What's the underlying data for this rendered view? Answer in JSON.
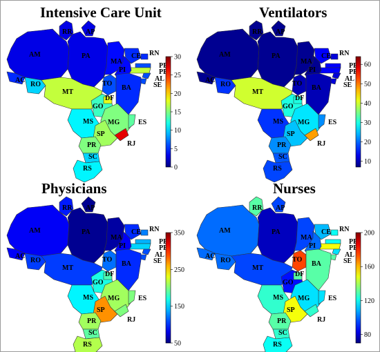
{
  "figure": {
    "panels": [
      {
        "key": "icu",
        "title": "Intensive Care Unit"
      },
      {
        "key": "vent",
        "title": "Ventilators"
      },
      {
        "key": "phys",
        "title": "Physicians"
      },
      {
        "key": "nurse",
        "title": "Nurses"
      }
    ]
  },
  "chart_data": [
    {
      "type": "choropleth",
      "title": "Intensive Care Unit",
      "colorbar": {
        "min": 0,
        "max": 30,
        "ticks": [
          0,
          5,
          10,
          15,
          20,
          25,
          30
        ],
        "colormap": "jet"
      },
      "regions": [
        {
          "state": "RR",
          "value": 3
        },
        {
          "state": "AP",
          "value": 3
        },
        {
          "state": "AM",
          "value": 3
        },
        {
          "state": "PA",
          "value": 3
        },
        {
          "state": "MA",
          "value": 4
        },
        {
          "state": "CE",
          "value": 5
        },
        {
          "state": "RN",
          "value": 5
        },
        {
          "state": "PB",
          "value": 6
        },
        {
          "state": "PE",
          "value": 17
        },
        {
          "state": "AL",
          "value": 6
        },
        {
          "state": "SE",
          "value": 6
        },
        {
          "state": "PI",
          "value": 4
        },
        {
          "state": "AC",
          "value": 5
        },
        {
          "state": "RO",
          "value": 10
        },
        {
          "state": "TO",
          "value": 6
        },
        {
          "state": "BA",
          "value": 5
        },
        {
          "state": "MT",
          "value": 17
        },
        {
          "state": "GO",
          "value": 13
        },
        {
          "state": "DF",
          "value": 18
        },
        {
          "state": "MG",
          "value": 15
        },
        {
          "state": "ES",
          "value": 14
        },
        {
          "state": "MS",
          "value": 11
        },
        {
          "state": "SP",
          "value": 16
        },
        {
          "state": "RJ",
          "value": 27
        },
        {
          "state": "PR",
          "value": 15
        },
        {
          "state": "SC",
          "value": 10
        },
        {
          "state": "RS",
          "value": 11
        }
      ]
    },
    {
      "type": "choropleth",
      "title": "Ventilators",
      "colorbar": {
        "min": 7,
        "max": 64,
        "ticks": [
          10,
          20,
          30,
          40,
          50,
          60
        ],
        "colormap": "jet"
      },
      "regions": [
        {
          "state": "RR",
          "value": 8
        },
        {
          "state": "AP",
          "value": 8
        },
        {
          "state": "AM",
          "value": 8
        },
        {
          "state": "PA",
          "value": 8
        },
        {
          "state": "MA",
          "value": 8
        },
        {
          "state": "CE",
          "value": 14
        },
        {
          "state": "RN",
          "value": 12
        },
        {
          "state": "PB",
          "value": 14
        },
        {
          "state": "PE",
          "value": 14
        },
        {
          "state": "AL",
          "value": 12
        },
        {
          "state": "SE",
          "value": 12
        },
        {
          "state": "PI",
          "value": 8
        },
        {
          "state": "AC",
          "value": 8
        },
        {
          "state": "RO",
          "value": 17
        },
        {
          "state": "TO",
          "value": 10
        },
        {
          "state": "BA",
          "value": 10
        },
        {
          "state": "MT",
          "value": 40
        },
        {
          "state": "GO",
          "value": 30
        },
        {
          "state": "DF",
          "value": 30
        },
        {
          "state": "MG",
          "value": 27
        },
        {
          "state": "ES",
          "value": 22
        },
        {
          "state": "MS",
          "value": 17
        },
        {
          "state": "SP",
          "value": 25
        },
        {
          "state": "RJ",
          "value": 48
        },
        {
          "state": "PR",
          "value": 22
        },
        {
          "state": "SC",
          "value": 19
        },
        {
          "state": "RS",
          "value": 18
        }
      ]
    },
    {
      "type": "choropleth",
      "title": "Physicians",
      "colorbar": {
        "min": 50,
        "max": 350,
        "ticks": [
          50,
          150,
          250,
          350
        ],
        "colormap": "jet"
      },
      "regions": [
        {
          "state": "RR",
          "value": 95
        },
        {
          "state": "AP",
          "value": 55
        },
        {
          "state": "AM",
          "value": 85
        },
        {
          "state": "PA",
          "value": 55
        },
        {
          "state": "MA",
          "value": 60
        },
        {
          "state": "CE",
          "value": 100
        },
        {
          "state": "RN",
          "value": 125
        },
        {
          "state": "PB",
          "value": 140
        },
        {
          "state": "PE",
          "value": 150
        },
        {
          "state": "AL",
          "value": 110
        },
        {
          "state": "SE",
          "value": 110
        },
        {
          "state": "PI",
          "value": 85
        },
        {
          "state": "AC",
          "value": 85
        },
        {
          "state": "RO",
          "value": 105
        },
        {
          "state": "TO",
          "value": 120
        },
        {
          "state": "BA",
          "value": 100
        },
        {
          "state": "MT",
          "value": 105
        },
        {
          "state": "GO",
          "value": 170
        },
        {
          "state": "DF",
          "value": 185
        },
        {
          "state": "MG",
          "value": 210
        },
        {
          "state": "ES",
          "value": 200
        },
        {
          "state": "MS",
          "value": 160
        },
        {
          "state": "SP",
          "value": 270
        },
        {
          "state": "RJ",
          "value": 200
        },
        {
          "state": "PR",
          "value": 210
        },
        {
          "state": "SC",
          "value": 190
        },
        {
          "state": "RS",
          "value": 215
        }
      ]
    },
    {
      "type": "choropleth",
      "title": "Nurses",
      "colorbar": {
        "min": 70,
        "max": 200,
        "ticks": [
          80,
          120,
          160,
          200
        ],
        "colormap": "jet"
      },
      "regions": [
        {
          "state": "RR",
          "value": 130
        },
        {
          "state": "AP",
          "value": 95
        },
        {
          "state": "AM",
          "value": 100
        },
        {
          "state": "PA",
          "value": 78
        },
        {
          "state": "MA",
          "value": 95
        },
        {
          "state": "CE",
          "value": 110
        },
        {
          "state": "RN",
          "value": 120
        },
        {
          "state": "PB",
          "value": 120
        },
        {
          "state": "PE",
          "value": 150
        },
        {
          "state": "AL",
          "value": 115
        },
        {
          "state": "SE",
          "value": 130
        },
        {
          "state": "PI",
          "value": 100
        },
        {
          "state": "AC",
          "value": 100
        },
        {
          "state": "RO",
          "value": 100
        },
        {
          "state": "TO",
          "value": 175
        },
        {
          "state": "BA",
          "value": 130
        },
        {
          "state": "MT",
          "value": 95
        },
        {
          "state": "GO",
          "value": 88
        },
        {
          "state": "DF",
          "value": 130
        },
        {
          "state": "MG",
          "value": 115
        },
        {
          "state": "ES",
          "value": 115
        },
        {
          "state": "MS",
          "value": 125
        },
        {
          "state": "SP",
          "value": 150
        },
        {
          "state": "RJ",
          "value": 125
        },
        {
          "state": "PR",
          "value": 130
        },
        {
          "state": "SC",
          "value": 125
        },
        {
          "state": "RS",
          "value": 120
        }
      ]
    }
  ]
}
